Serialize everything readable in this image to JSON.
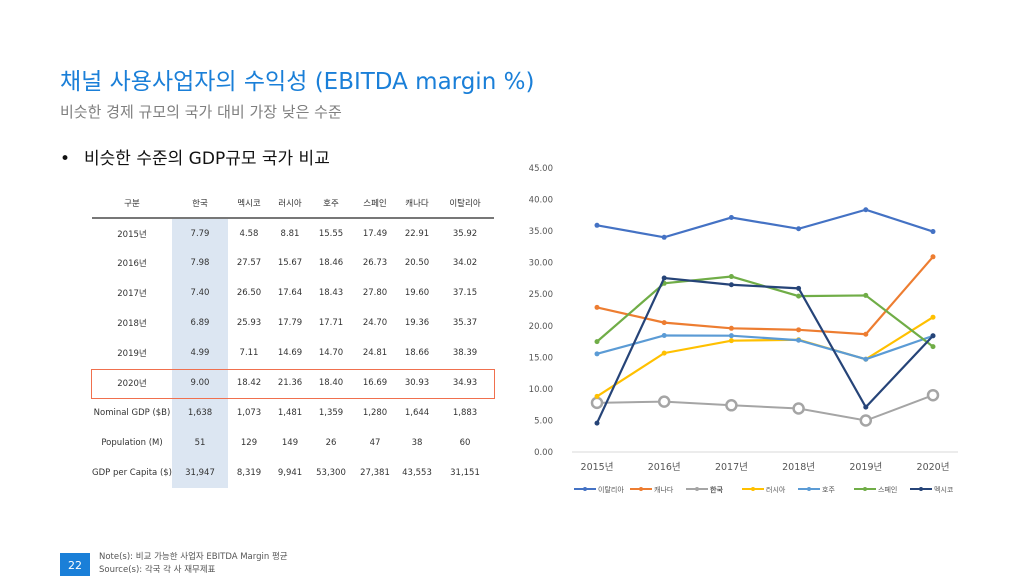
{
  "header": {
    "title": "채널 사용사업자의 수익성 (EBITDA margin %)",
    "subtitle": "비슷한 경제 규모의 국가 대비 가장 낮은 수준",
    "bullet": "비슷한 수준의 GDP규모 국가 비교"
  },
  "table": {
    "headers": [
      "구분",
      "한국",
      "멕시코",
      "러시아",
      "호주",
      "스페인",
      "캐나다",
      "이탈리아"
    ],
    "rows": [
      [
        "2015년",
        "7.79",
        "4.58",
        "8.81",
        "15.55",
        "17.49",
        "22.91",
        "35.92"
      ],
      [
        "2016년",
        "7.98",
        "27.57",
        "15.67",
        "18.46",
        "26.73",
        "20.50",
        "34.02"
      ],
      [
        "2017년",
        "7.40",
        "26.50",
        "17.64",
        "18.43",
        "27.80",
        "19.60",
        "37.15"
      ],
      [
        "2018년",
        "6.89",
        "25.93",
        "17.79",
        "17.71",
        "24.70",
        "19.36",
        "35.37"
      ],
      [
        "2019년",
        "4.99",
        "7.11",
        "14.69",
        "14.70",
        "24.81",
        "18.66",
        "38.39"
      ],
      [
        "2020년",
        "9.00",
        "18.42",
        "21.36",
        "18.40",
        "16.69",
        "30.93",
        "34.93"
      ],
      [
        "Nominal GDP ($B)",
        "1,638",
        "1,073",
        "1,481",
        "1,359",
        "1,280",
        "1,644",
        "1,883"
      ],
      [
        "Population (M)",
        "51",
        "129",
        "149",
        "26",
        "47",
        "38",
        "60"
      ],
      [
        "GDP per Capita ($)",
        "31,947",
        "8,319",
        "9,941",
        "53,300",
        "27,381",
        "43,553",
        "31,151"
      ]
    ],
    "highlight_row": "2020년",
    "highlight_color": "#f0704e",
    "highlight_column": "한국"
  },
  "chart_data": {
    "type": "line",
    "categories": [
      "2015년",
      "2016년",
      "2017년",
      "2018년",
      "2019년",
      "2020년"
    ],
    "ylim": [
      0,
      45
    ],
    "yticks": [
      "0.00",
      "5.00",
      "10.00",
      "15.00",
      "20.00",
      "25.00",
      "30.00",
      "35.00",
      "40.00",
      "45.00"
    ],
    "grid": false,
    "legend": "bottom",
    "series": [
      {
        "name": "이탈리아",
        "color": "#4472c4",
        "values": [
          35.92,
          34.02,
          37.15,
          35.37,
          38.39,
          34.93
        ]
      },
      {
        "name": "캐나다",
        "color": "#ed7d31",
        "values": [
          22.91,
          20.5,
          19.6,
          19.36,
          18.66,
          30.93
        ]
      },
      {
        "name": "한국",
        "color": "#a5a5a5",
        "values": [
          7.79,
          7.98,
          7.4,
          6.89,
          4.99,
          9.0
        ]
      },
      {
        "name": "러시아",
        "color": "#ffc000",
        "values": [
          8.81,
          15.67,
          17.64,
          17.79,
          14.69,
          21.36
        ]
      },
      {
        "name": "호주",
        "color": "#5b9bd5",
        "values": [
          15.55,
          18.46,
          18.43,
          17.71,
          14.7,
          18.4
        ]
      },
      {
        "name": "스페인",
        "color": "#70ad47",
        "values": [
          17.49,
          26.73,
          27.8,
          24.7,
          24.81,
          16.69
        ]
      },
      {
        "name": "멕시코",
        "color": "#264478",
        "values": [
          4.58,
          27.57,
          26.5,
          25.93,
          7.11,
          18.42
        ]
      }
    ]
  },
  "footer": {
    "page": "22",
    "note": "Note(s): 비교 가능한 사업자 EBITDA Margin 평균",
    "source": "Source(s): 각국 각 사 재무제표"
  }
}
